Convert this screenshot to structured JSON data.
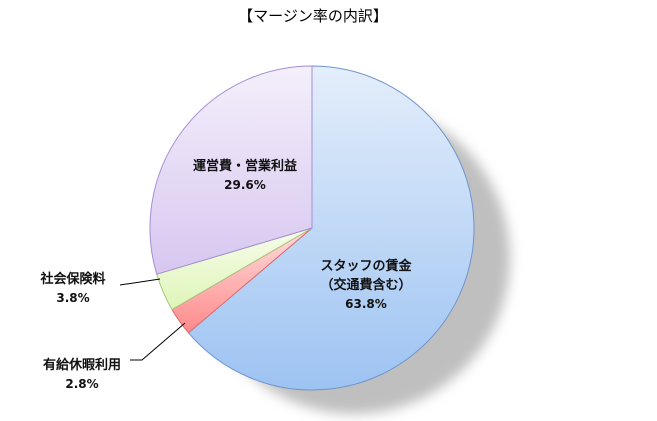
{
  "chart_data": {
    "type": "pie",
    "title": "【マージン率の内訳】",
    "start_angle_deg": 0,
    "direction": "clockwise",
    "shadow": true,
    "legend": "none",
    "slices": [
      {
        "label": "スタッフの賃金",
        "sublabel": "（交通費含む）",
        "value": 63.8,
        "value_label": "63.8%",
        "color": "#9dc3f2",
        "label_position": "inside"
      },
      {
        "label": "有給休暇利用",
        "sublabel": "",
        "value": 2.8,
        "value_label": "2.8%",
        "color": "#ff8a8a",
        "label_position": "outside-leader"
      },
      {
        "label": "社会保険料",
        "sublabel": "",
        "value": 3.8,
        "value_label": "3.8%",
        "color": "#dff5b8",
        "label_position": "outside-leader"
      },
      {
        "label": "運営費・営業利益",
        "sublabel": "",
        "value": 29.6,
        "value_label": "29.6%",
        "color": "#d7c7f0",
        "label_position": "inside"
      }
    ]
  }
}
